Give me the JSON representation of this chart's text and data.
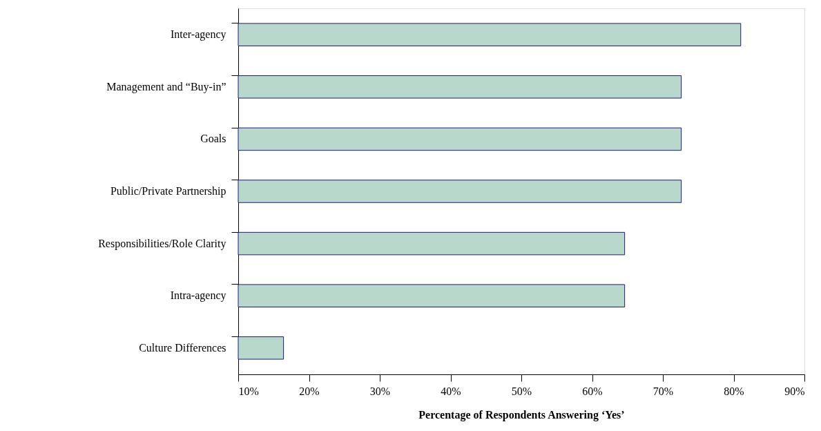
{
  "chart_data": {
    "type": "bar",
    "orientation": "horizontal",
    "categories": [
      "Inter-agency",
      "Management and “Buy-in”",
      "Goals",
      "Public/Private Partnership",
      "Responsibilities/Role Clarity",
      "Intra-agency",
      "Culture Differences"
    ],
    "values": [
      81,
      72.6,
      72.6,
      72.6,
      64.6,
      64.6,
      16.4
    ],
    "color": "#b8d8cc",
    "xlim": [
      10,
      90
    ],
    "xticks": [
      {
        "value": 10,
        "label": "10%"
      },
      {
        "value": 20,
        "label": "20%"
      },
      {
        "value": 30,
        "label": "30%"
      },
      {
        "value": 40,
        "label": "40%"
      },
      {
        "value": 50,
        "label": "50%"
      },
      {
        "value": 60,
        "label": "60%"
      },
      {
        "value": 70,
        "label": "70%"
      },
      {
        "value": 80,
        "label": "80%"
      },
      {
        "value": 90,
        "label": "90%"
      }
    ],
    "xlabel": "Percentage of Respondents Answering ‘Yes’",
    "grid": false
  }
}
